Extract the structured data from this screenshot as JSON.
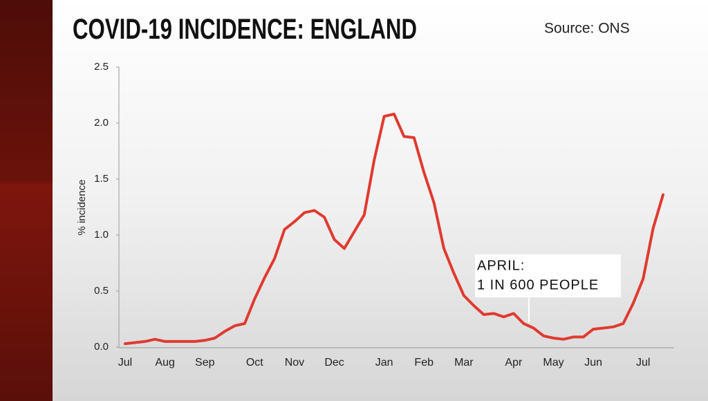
{
  "chart_data": {
    "type": "line",
    "title": "COVID-19 INCIDENCE: ENGLAND",
    "source": "Source: ONS",
    "ylabel": "% incidence",
    "annotation": [
      "APRIL:",
      "1 IN 600 PEOPLE"
    ],
    "categories": [
      "Jul",
      null,
      null,
      null,
      "Aug",
      null,
      null,
      null,
      "Sep",
      null,
      null,
      null,
      null,
      "Oct",
      null,
      null,
      null,
      "Nov",
      null,
      null,
      null,
      "Dec",
      null,
      null,
      null,
      null,
      "Jan",
      null,
      null,
      null,
      "Feb",
      null,
      null,
      null,
      "Mar",
      null,
      null,
      null,
      null,
      "Apr",
      null,
      null,
      null,
      "May",
      null,
      null,
      null,
      "Jun",
      null,
      null,
      null,
      null,
      "Jul",
      null,
      null
    ],
    "series": [
      {
        "name": "% incidence",
        "color": "#e03a2f",
        "values": [
          0.03,
          0.04,
          0.05,
          0.07,
          0.05,
          0.05,
          0.05,
          0.05,
          0.06,
          0.08,
          0.14,
          0.19,
          0.21,
          0.43,
          0.62,
          0.79,
          1.05,
          1.12,
          1.2,
          1.22,
          1.16,
          0.96,
          0.88,
          1.03,
          1.18,
          1.67,
          2.06,
          2.08,
          1.88,
          1.87,
          1.56,
          1.29,
          0.88,
          0.66,
          0.46,
          0.37,
          0.29,
          0.3,
          0.27,
          0.3,
          0.21,
          0.17,
          0.1,
          0.08,
          0.07,
          0.09,
          0.09,
          0.16,
          0.17,
          0.18,
          0.21,
          0.39,
          0.61,
          1.06,
          1.36
        ]
      }
    ],
    "ylim": [
      0,
      2.5
    ],
    "yticks": [
      {
        "value": 0,
        "label": "0.0"
      },
      0.5,
      {
        "value": 1,
        "label": "1.0"
      },
      1.5,
      {
        "value": 2,
        "label": "2.0"
      },
      2.5
    ],
    "grid": false
  }
}
